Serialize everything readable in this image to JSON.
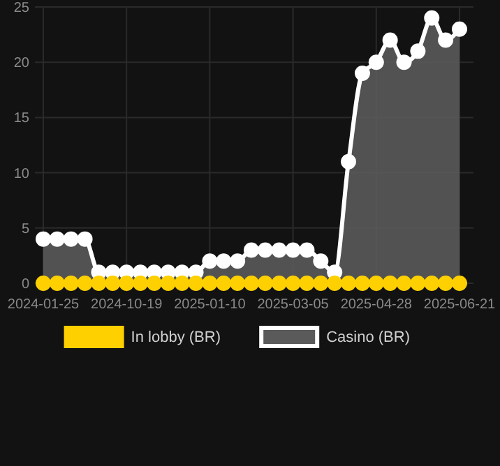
{
  "chart_data": {
    "type": "area",
    "categories": [
      "2024-01-25",
      null,
      null,
      null,
      null,
      null,
      "2024-10-19",
      null,
      null,
      null,
      null,
      null,
      "2025-01-10",
      null,
      null,
      null,
      null,
      null,
      "2025-03-05",
      null,
      null,
      null,
      null,
      null,
      "2025-04-28",
      null,
      null,
      null,
      null,
      null,
      "2025-06-21"
    ],
    "series": [
      {
        "name": "In lobby (BR)",
        "type": "scatter",
        "color": "#ffd000",
        "values": [
          0,
          0,
          0,
          0,
          0,
          0,
          0,
          0,
          0,
          0,
          0,
          0,
          0,
          0,
          0,
          0,
          0,
          0,
          0,
          0,
          0,
          0,
          0,
          0,
          0,
          0,
          0,
          0,
          0,
          0,
          0
        ]
      },
      {
        "name": "Casino (BR)",
        "color": "#ffffff",
        "values": [
          4,
          4,
          4,
          4,
          1,
          1,
          1,
          1,
          1,
          1,
          1,
          1,
          2,
          2,
          2,
          3,
          3,
          3,
          3,
          3,
          2,
          1,
          11,
          19,
          20,
          22,
          20,
          21,
          24,
          22,
          23
        ]
      }
    ],
    "ylim": [
      0,
      25
    ],
    "yticks": [
      0,
      5,
      10,
      15,
      20,
      25
    ],
    "grid": true,
    "legend": "bottom",
    "marker": "circle"
  }
}
